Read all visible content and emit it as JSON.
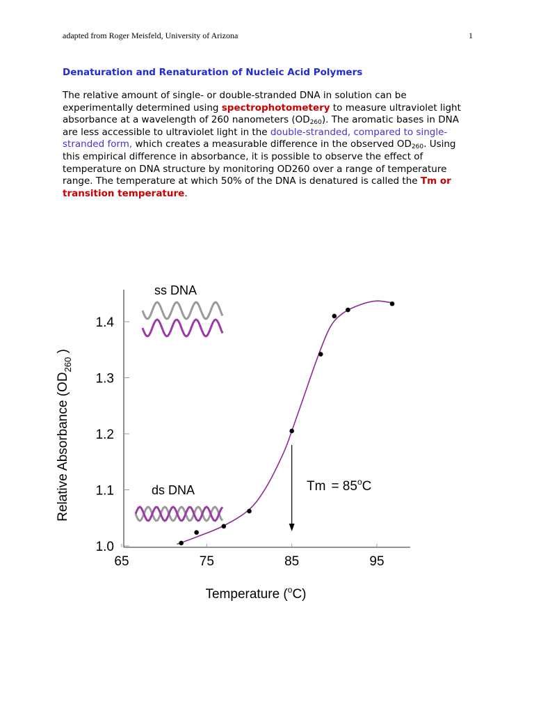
{
  "header": {
    "attribution": "adapted from Roger Meisfeld, University of Arizona",
    "page_number": "1"
  },
  "title": "Denaturation and Renaturation of Nucleic Acid Polymers",
  "paragraph": {
    "p1": "The relative amount of single- or double-stranded DNA in solution can be experimentally determined using ",
    "spectro": "spectrophotometery",
    "p2": " to measure ultraviolet light absorbance at a wavelength of 260 nanometers (OD",
    "sub1": "260",
    "p3": "). The aromatic bases in DNA are less accessible to ultraviolet light in the ",
    "blue": "double-stranded, compared to single-stranded form,",
    "p4": " which creates a measurable difference in the observed OD",
    "sub2": "260",
    "p5": ". Using this empirical difference in absorbance, it is possible to observe the effect of temperature on DNA structure by monitoring OD260 over a range of temperature range. The temperature at which 50% of the DNA is denatured is called the ",
    "tm_term": "Tm or transition temperature",
    "p6": "."
  },
  "chart_data": {
    "type": "scatter",
    "xlabel_main": "Temperature (",
    "xlabel_sup": "o",
    "xlabel_end": "C)",
    "ylabel_main": "Relative Absorbance (OD",
    "ylabel_sub": "260",
    "ylabel_end": " )",
    "xlim": [
      65,
      100
    ],
    "ylim": [
      1.0,
      1.47
    ],
    "x_ticks": [
      {
        "value": 65,
        "label": "65"
      },
      {
        "value": 75,
        "label": "75"
      },
      {
        "value": 85,
        "label": "85"
      },
      {
        "value": 95,
        "label": "95"
      }
    ],
    "y_ticks": [
      {
        "value": 1.0,
        "label": "1.0"
      },
      {
        "value": 1.1,
        "label": "1.1"
      },
      {
        "value": 1.2,
        "label": "1.2"
      },
      {
        "value": 1.3,
        "label": "1.3"
      },
      {
        "value": 1.4,
        "label": "1.4"
      }
    ],
    "points": [
      {
        "x": 72.0,
        "y": 1.005
      },
      {
        "x": 73.8,
        "y": 1.024
      },
      {
        "x": 77.0,
        "y": 1.035
      },
      {
        "x": 80.0,
        "y": 1.062
      },
      {
        "x": 85.0,
        "y": 1.205
      },
      {
        "x": 88.4,
        "y": 1.342
      },
      {
        "x": 90.0,
        "y": 1.41
      },
      {
        "x": 91.6,
        "y": 1.421
      },
      {
        "x": 96.8,
        "y": 1.432
      }
    ],
    "curve": [
      {
        "x": 71.5,
        "y": 1.003
      },
      {
        "x": 74,
        "y": 1.017
      },
      {
        "x": 77,
        "y": 1.036
      },
      {
        "x": 80,
        "y": 1.065
      },
      {
        "x": 82,
        "y": 1.105
      },
      {
        "x": 84,
        "y": 1.165
      },
      {
        "x": 85,
        "y": 1.205
      },
      {
        "x": 86.5,
        "y": 1.27
      },
      {
        "x": 88,
        "y": 1.335
      },
      {
        "x": 89.5,
        "y": 1.39
      },
      {
        "x": 91,
        "y": 1.415
      },
      {
        "x": 93,
        "y": 1.43
      },
      {
        "x": 95,
        "y": 1.437
      },
      {
        "x": 97,
        "y": 1.433
      }
    ],
    "curve_color": "#8e2a93",
    "strand_color_ss": "#9a9a9a",
    "strand_color_ds": "#9c3aa8",
    "tm_value": 85,
    "tm_label_main": "Tm",
    "tm_label_rest": "= 85",
    "tm_label_sup": "o",
    "tm_label_end": "C",
    "ss_label": "ss DNA",
    "ds_label": "ds DNA"
  }
}
